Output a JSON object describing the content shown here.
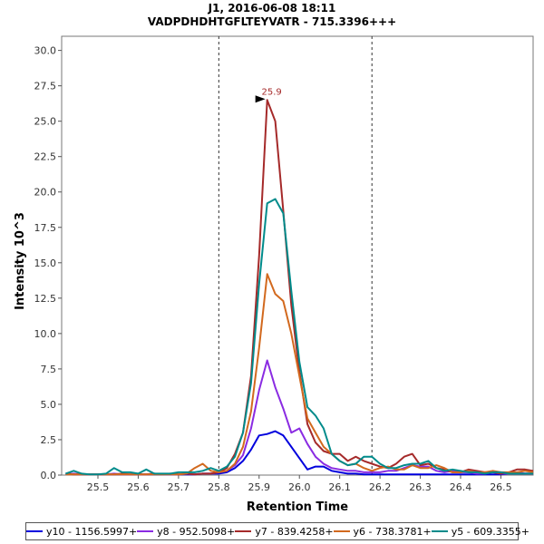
{
  "chart_data": {
    "type": "line",
    "title": "J1, 2016-06-08 18:11",
    "subtitle": "VADPDHDHTGFLTEYVATR - 715.3396+++",
    "xlabel": "Retention Time",
    "ylabel": "Intensity 10^3",
    "xlim": [
      25.41,
      26.58
    ],
    "ylim": [
      0,
      31
    ],
    "xticks": [
      "25.5",
      "25.6",
      "25.7",
      "25.8",
      "25.9",
      "26.0",
      "26.1",
      "26.2",
      "26.3",
      "26.4",
      "26.5"
    ],
    "yticks": [
      "0.0",
      "2.5",
      "5.0",
      "7.5",
      "10.0",
      "12.5",
      "15.0",
      "17.5",
      "20.0",
      "22.5",
      "25.0",
      "27.5",
      "30.0"
    ],
    "boundaries": [
      25.8,
      26.18
    ],
    "peak_annotation": {
      "x": 25.92,
      "y": 26.5,
      "label": "25.9"
    },
    "x": [
      25.42,
      25.44,
      25.46,
      25.48,
      25.5,
      25.52,
      25.54,
      25.56,
      25.58,
      25.6,
      25.62,
      25.64,
      25.66,
      25.68,
      25.7,
      25.72,
      25.74,
      25.76,
      25.78,
      25.8,
      25.82,
      25.84,
      25.86,
      25.88,
      25.9,
      25.92,
      25.94,
      25.96,
      25.98,
      26.0,
      26.02,
      26.04,
      26.06,
      26.08,
      26.1,
      26.12,
      26.14,
      26.16,
      26.18,
      26.2,
      26.22,
      26.24,
      26.26,
      26.28,
      26.3,
      26.32,
      26.34,
      26.36,
      26.38,
      26.4,
      26.42,
      26.44,
      26.46,
      26.48,
      26.5,
      26.52,
      26.54,
      26.56,
      26.58
    ],
    "series": [
      {
        "name": "y10 - 1156.5997+",
        "color": "#0000dd",
        "values": [
          0.1,
          0.05,
          0.05,
          0.05,
          0.05,
          0.05,
          0.05,
          0.05,
          0.05,
          0.05,
          0.05,
          0.05,
          0.05,
          0.05,
          0.05,
          0.05,
          0.05,
          0.1,
          0.1,
          0.1,
          0.2,
          0.5,
          1.0,
          1.8,
          2.8,
          2.9,
          3.1,
          2.8,
          2.0,
          1.2,
          0.4,
          0.6,
          0.6,
          0.3,
          0.2,
          0.1,
          0.1,
          0.05,
          0.05,
          0.05,
          0.05,
          0.05,
          0.05,
          0.05,
          0.05,
          0.05,
          0.05,
          0.05,
          0.05,
          0.05,
          0.05,
          0.05,
          0.05,
          0.05,
          0.05,
          0.1,
          0.1,
          0.1,
          0.1
        ]
      },
      {
        "name": "y8 - 952.5098+",
        "color": "#8a2be2",
        "values": [
          0.05,
          0.1,
          0.05,
          0.05,
          0.05,
          0.05,
          0.1,
          0.05,
          0.05,
          0.05,
          0.05,
          0.1,
          0.05,
          0.05,
          0.05,
          0.1,
          0.05,
          0.1,
          0.1,
          0.2,
          0.3,
          0.7,
          1.4,
          3.3,
          6.0,
          8.1,
          6.2,
          4.7,
          3.0,
          3.3,
          2.2,
          1.3,
          0.8,
          0.5,
          0.4,
          0.3,
          0.3,
          0.2,
          0.2,
          0.2,
          0.3,
          0.3,
          0.5,
          0.7,
          0.6,
          0.6,
          0.3,
          0.2,
          0.3,
          0.2,
          0.2,
          0.1,
          0.1,
          0.2,
          0.1,
          0.1,
          0.2,
          0.1,
          0.1
        ]
      },
      {
        "name": "y7 - 839.4258+",
        "color": "#a52a2a",
        "values": [
          0.1,
          0.05,
          0.05,
          0.05,
          0.05,
          0.05,
          0.05,
          0.1,
          0.05,
          0.05,
          0.05,
          0.1,
          0.05,
          0.1,
          0.05,
          0.1,
          0.05,
          0.1,
          0.1,
          0.2,
          0.5,
          1.5,
          3.0,
          7.0,
          15.5,
          26.5,
          25.0,
          18.7,
          12.0,
          7.3,
          3.6,
          2.3,
          1.7,
          1.5,
          1.5,
          1.0,
          1.3,
          1.0,
          0.8,
          0.6,
          0.5,
          0.8,
          1.3,
          1.5,
          0.7,
          0.8,
          0.5,
          0.4,
          0.2,
          0.2,
          0.4,
          0.3,
          0.2,
          0.2,
          0.1,
          0.2,
          0.4,
          0.4,
          0.3
        ]
      },
      {
        "name": "y6 - 738.3781+",
        "color": "#d2691e",
        "values": [
          0.05,
          0.05,
          0.05,
          0.05,
          0.05,
          0.05,
          0.05,
          0.05,
          0.05,
          0.05,
          0.05,
          0.05,
          0.05,
          0.05,
          0.05,
          0.1,
          0.5,
          0.8,
          0.3,
          0.2,
          0.3,
          0.8,
          2.0,
          4.5,
          9.0,
          14.2,
          12.8,
          12.3,
          10.0,
          7.0,
          4.0,
          3.0,
          2.0,
          1.5,
          1.0,
          0.7,
          0.8,
          0.5,
          0.3,
          0.5,
          0.6,
          0.4,
          0.4,
          0.7,
          0.5,
          0.5,
          0.7,
          0.5,
          0.2,
          0.2,
          0.3,
          0.2,
          0.2,
          0.3,
          0.2,
          0.2,
          0.2,
          0.3,
          0.2
        ]
      },
      {
        "name": "y5 - 609.3355+",
        "color": "#008b8b",
        "values": [
          0.1,
          0.3,
          0.1,
          0.05,
          0.05,
          0.1,
          0.5,
          0.2,
          0.2,
          0.1,
          0.4,
          0.1,
          0.1,
          0.1,
          0.2,
          0.2,
          0.2,
          0.3,
          0.5,
          0.3,
          0.6,
          1.3,
          3.0,
          6.5,
          13.5,
          19.2,
          19.5,
          18.5,
          13.0,
          8.0,
          4.8,
          4.2,
          3.3,
          1.5,
          1.0,
          0.7,
          0.8,
          1.3,
          1.3,
          0.8,
          0.5,
          0.5,
          0.7,
          0.8,
          0.8,
          1.0,
          0.5,
          0.3,
          0.4,
          0.3,
          0.2,
          0.2,
          0.1,
          0.2,
          0.2,
          0.1,
          0.1,
          0.1,
          0.1
        ]
      }
    ]
  }
}
